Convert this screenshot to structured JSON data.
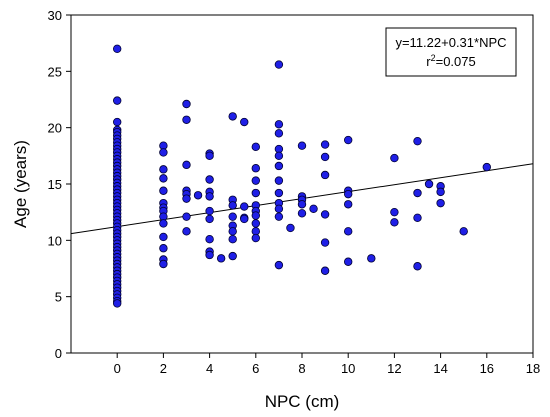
{
  "chart_data": {
    "type": "scatter",
    "xlabel": "NPC (cm)",
    "ylabel": "Age (years)",
    "xlim": [
      -2,
      18
    ],
    "ylim": [
      0,
      30
    ],
    "xticks": [
      0,
      2,
      4,
      6,
      8,
      10,
      12,
      14,
      16,
      18
    ],
    "yticks": [
      0,
      5,
      10,
      15,
      20,
      25,
      30
    ],
    "grid": false,
    "legend": "none",
    "point_color": "#1f1fe6",
    "point_edge": "#000033",
    "annotation": {
      "equation": "y=11.22+0.31*NPC",
      "r2_prefix": "r",
      "r2_sup": "2",
      "r2_value": "=0.075",
      "placement": "top-right"
    },
    "fit_line": {
      "intercept": 11.22,
      "slope": 0.31,
      "x_range": [
        -2,
        18
      ]
    },
    "points": [
      [
        0,
        27.0
      ],
      [
        0,
        22.4
      ],
      [
        0,
        20.5
      ],
      [
        0,
        19.8
      ],
      [
        0,
        19.6
      ],
      [
        0,
        19.3
      ],
      [
        0,
        19.0
      ],
      [
        0,
        18.7
      ],
      [
        0,
        18.4
      ],
      [
        0,
        18.1
      ],
      [
        0,
        17.8
      ],
      [
        0,
        17.5
      ],
      [
        0,
        17.2
      ],
      [
        0,
        16.9
      ],
      [
        0,
        16.6
      ],
      [
        0,
        16.3
      ],
      [
        0,
        16.0
      ],
      [
        0,
        15.7
      ],
      [
        0,
        15.4
      ],
      [
        0,
        15.1
      ],
      [
        0,
        14.8
      ],
      [
        0,
        14.5
      ],
      [
        0,
        14.2
      ],
      [
        0,
        13.9
      ],
      [
        0,
        13.6
      ],
      [
        0,
        13.3
      ],
      [
        0,
        13.0
      ],
      [
        0,
        12.7
      ],
      [
        0,
        12.4
      ],
      [
        0,
        12.1
      ],
      [
        0,
        11.8
      ],
      [
        0,
        11.5
      ],
      [
        0,
        11.2
      ],
      [
        0,
        10.9
      ],
      [
        0,
        10.6
      ],
      [
        0,
        10.3
      ],
      [
        0,
        10.0
      ],
      [
        0,
        9.7
      ],
      [
        0,
        9.4
      ],
      [
        0,
        9.1
      ],
      [
        0,
        8.8
      ],
      [
        0,
        8.5
      ],
      [
        0,
        8.2
      ],
      [
        0,
        7.9
      ],
      [
        0,
        7.6
      ],
      [
        0,
        7.3
      ],
      [
        0,
        7.0
      ],
      [
        0,
        6.7
      ],
      [
        0,
        6.4
      ],
      [
        0,
        6.1
      ],
      [
        0,
        5.8
      ],
      [
        0,
        5.5
      ],
      [
        0,
        5.2
      ],
      [
        0,
        4.9
      ],
      [
        0,
        4.6
      ],
      [
        0,
        4.4
      ],
      [
        2,
        18.4
      ],
      [
        2,
        17.8
      ],
      [
        2,
        16.3
      ],
      [
        2,
        15.5
      ],
      [
        2,
        14.4
      ],
      [
        2,
        13.3
      ],
      [
        2,
        12.9
      ],
      [
        2,
        12.6
      ],
      [
        2,
        12.1
      ],
      [
        2,
        11.5
      ],
      [
        2,
        10.3
      ],
      [
        2,
        9.3
      ],
      [
        2,
        8.3
      ],
      [
        2,
        7.9
      ],
      [
        3,
        22.1
      ],
      [
        3,
        20.7
      ],
      [
        3,
        16.7
      ],
      [
        3,
        14.4
      ],
      [
        3,
        14.1
      ],
      [
        3,
        13.7
      ],
      [
        3,
        12.1
      ],
      [
        3,
        10.8
      ],
      [
        4,
        17.7
      ],
      [
        4,
        17.5
      ],
      [
        4,
        15.4
      ],
      [
        4,
        14.3
      ],
      [
        4,
        13.9
      ],
      [
        4,
        12.6
      ],
      [
        4,
        11.9
      ],
      [
        4,
        10.1
      ],
      [
        4,
        9.0
      ],
      [
        4,
        8.7
      ],
      [
        3.5,
        14.0
      ],
      [
        4.5,
        8.4
      ],
      [
        5,
        21.0
      ],
      [
        5,
        13.6
      ],
      [
        5,
        13.1
      ],
      [
        5,
        12.1
      ],
      [
        5,
        11.3
      ],
      [
        5,
        10.8
      ],
      [
        5,
        10.1
      ],
      [
        5,
        8.6
      ],
      [
        5.5,
        20.5
      ],
      [
        5.5,
        13.0
      ],
      [
        5.5,
        12.0
      ],
      [
        5.5,
        11.9
      ],
      [
        6,
        18.3
      ],
      [
        6,
        16.4
      ],
      [
        6,
        15.3
      ],
      [
        6,
        14.2
      ],
      [
        6,
        13.1
      ],
      [
        6,
        12.6
      ],
      [
        6,
        12.2
      ],
      [
        6,
        11.5
      ],
      [
        6,
        10.8
      ],
      [
        6,
        10.2
      ],
      [
        7,
        25.6
      ],
      [
        7,
        20.3
      ],
      [
        7,
        19.5
      ],
      [
        7,
        18.1
      ],
      [
        7,
        17.5
      ],
      [
        7,
        16.6
      ],
      [
        7,
        15.3
      ],
      [
        7,
        14.2
      ],
      [
        7,
        13.3
      ],
      [
        7,
        12.8
      ],
      [
        7,
        12.1
      ],
      [
        7,
        7.8
      ],
      [
        7.5,
        11.1
      ],
      [
        8,
        18.4
      ],
      [
        8,
        13.9
      ],
      [
        8,
        13.6
      ],
      [
        8,
        13.2
      ],
      [
        8,
        12.4
      ],
      [
        8.5,
        12.8
      ],
      [
        9,
        18.5
      ],
      [
        9,
        17.4
      ],
      [
        9,
        15.8
      ],
      [
        9,
        12.3
      ],
      [
        9,
        9.8
      ],
      [
        9,
        7.3
      ],
      [
        10,
        18.9
      ],
      [
        10,
        14.4
      ],
      [
        10,
        14.1
      ],
      [
        10,
        13.2
      ],
      [
        10,
        10.8
      ],
      [
        10,
        8.1
      ],
      [
        11,
        8.4
      ],
      [
        12,
        17.3
      ],
      [
        12,
        12.5
      ],
      [
        12,
        11.6
      ],
      [
        13,
        18.8
      ],
      [
        13,
        14.2
      ],
      [
        13,
        12.0
      ],
      [
        13,
        7.7
      ],
      [
        13.5,
        15.0
      ],
      [
        14,
        14.8
      ],
      [
        14,
        14.3
      ],
      [
        14,
        13.3
      ],
      [
        15,
        10.8
      ],
      [
        16,
        16.5
      ]
    ]
  }
}
